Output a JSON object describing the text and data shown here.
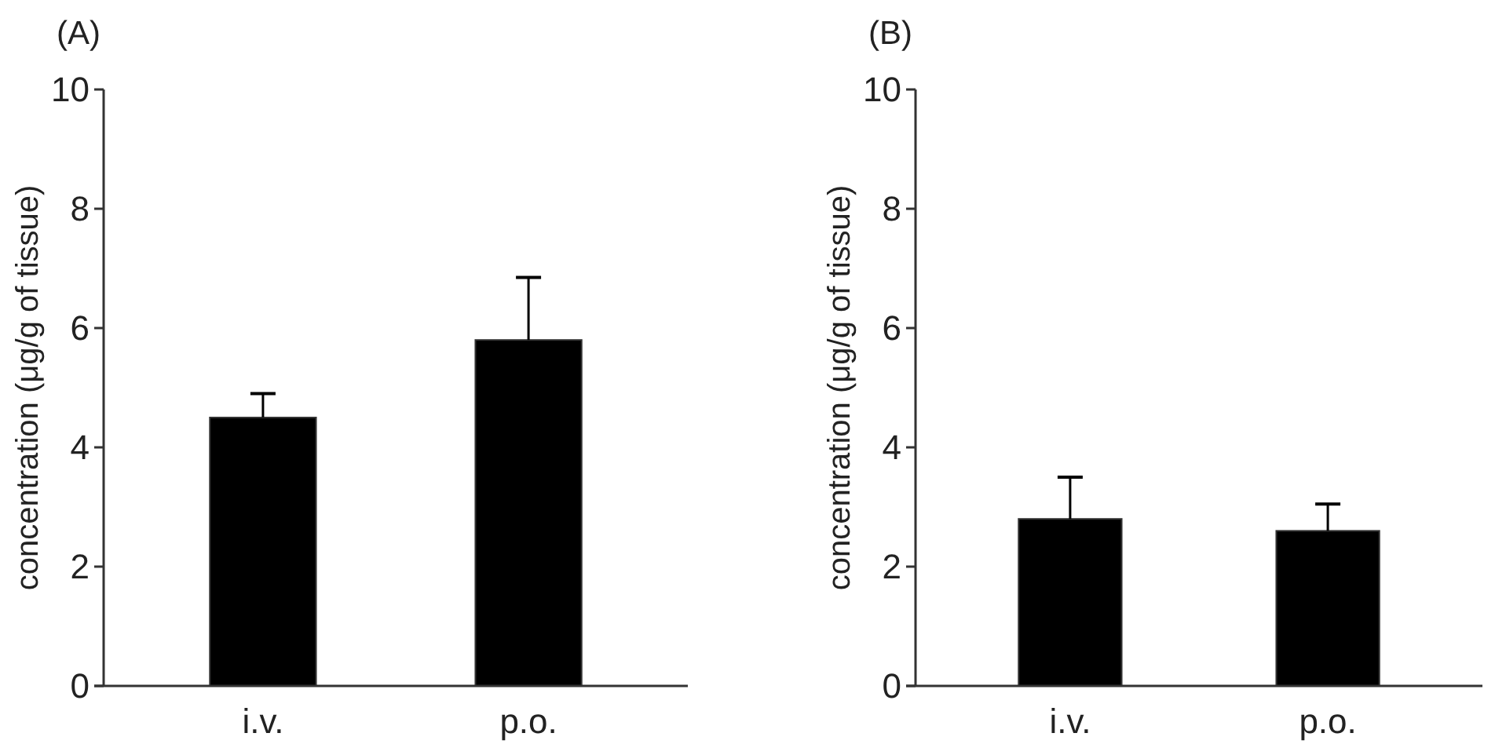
{
  "chart_data": [
    {
      "type": "bar",
      "title": "(A)",
      "ylabel": "concentration (μg/g of tissue)",
      "categories": [
        "i.v.",
        "p.o."
      ],
      "values": [
        4.5,
        5.8
      ],
      "errors": [
        [
          4.5,
          4.9
        ],
        [
          5.8,
          6.85
        ]
      ],
      "color": "#000000",
      "ylim": [
        0,
        10
      ],
      "yticks": [
        0,
        2,
        4,
        6,
        8,
        10
      ],
      "grid": false
    },
    {
      "type": "bar",
      "title": "(B)",
      "ylabel": "concentration (μg/g of tissue)",
      "categories": [
        "i.v.",
        "p.o."
      ],
      "values": [
        2.8,
        2.6
      ],
      "errors": [
        [
          2.8,
          3.5
        ],
        [
          2.6,
          3.05
        ]
      ],
      "color": "#000000",
      "ylim": [
        0,
        10
      ],
      "yticks": [
        0,
        2,
        4,
        6,
        8,
        10
      ],
      "grid": false
    }
  ]
}
